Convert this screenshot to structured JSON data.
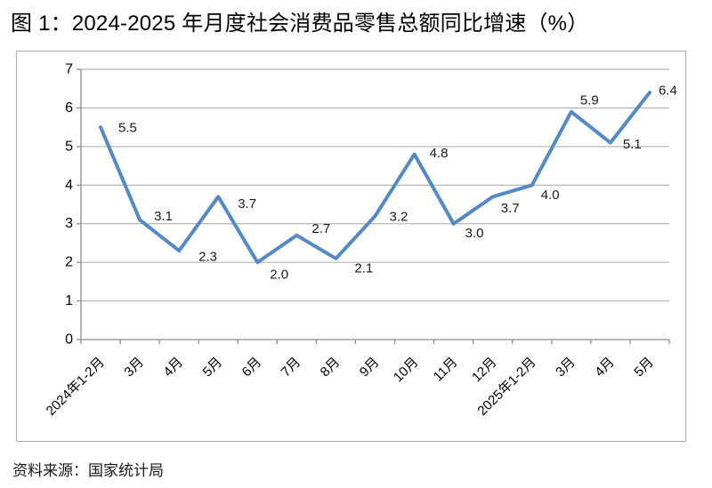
{
  "title": "图 1：2024-2025 年月度社会消费品零售总额同比增速（%）",
  "source": "资料来源：国家统计局",
  "chart_data": {
    "type": "line",
    "title": "2024-2025 年月度社会消费品零售总额同比增速（%）",
    "categories": [
      "2024年1-2月",
      "3月",
      "4月",
      "5月",
      "6月",
      "7月",
      "8月",
      "9月",
      "10月",
      "11月",
      "12月",
      "2025年1-2月",
      "3月",
      "4月",
      "5月"
    ],
    "values": [
      5.5,
      3.1,
      2.3,
      3.7,
      2.0,
      2.7,
      2.1,
      3.2,
      4.8,
      3.0,
      3.7,
      4.0,
      5.9,
      5.1,
      6.4
    ],
    "xlabel": "",
    "ylabel": "",
    "ylim": [
      0,
      7
    ],
    "y_ticks": [
      0,
      1,
      2,
      3,
      4,
      5,
      6,
      7
    ],
    "grid": true,
    "legend": "none",
    "data_labels_shown": true,
    "colors": {
      "line": "#5489C8",
      "grid": "#A6A6A6",
      "axis": "#8C8C8C",
      "frame_border": "#ABABAB",
      "tick_text": "#000000",
      "data_label_text": "#1A1A1A"
    }
  }
}
